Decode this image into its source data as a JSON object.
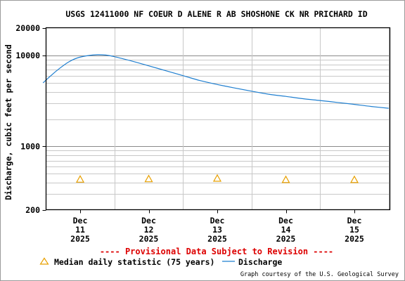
{
  "chart_data": {
    "type": "line",
    "title": "USGS 12411000 NF COEUR D ALENE R AB SHOSHONE CK NR PRICHARD ID",
    "ylabel": "Discharge, cubic feet per second",
    "xlabel": "",
    "yscale": "log",
    "ylim": [
      200,
      20000
    ],
    "y_ticks": [
      {
        "value": 200,
        "label": "200"
      },
      {
        "value": 1000,
        "label": "1000"
      },
      {
        "value": 10000,
        "label": "10000"
      },
      {
        "value": 20000,
        "label": "20000"
      }
    ],
    "x_ticks": [
      {
        "line1": "Dec",
        "line2": "11",
        "line3": "2025"
      },
      {
        "line1": "Dec",
        "line2": "12",
        "line3": "2025"
      },
      {
        "line1": "Dec",
        "line2": "13",
        "line3": "2025"
      },
      {
        "line1": "Dec",
        "line2": "14",
        "line3": "2025"
      },
      {
        "line1": "Dec",
        "line2": "15",
        "line3": "2025"
      }
    ],
    "grid": true,
    "series": [
      {
        "name": "Discharge",
        "color": "#1f7fd0",
        "points": [
          {
            "x": "2025-12-10 11:00",
            "y": 5000
          },
          {
            "x": "2025-12-10 14:00",
            "y": 6100
          },
          {
            "x": "2025-12-10 17:00",
            "y": 7300
          },
          {
            "x": "2025-12-10 20:00",
            "y": 8500
          },
          {
            "x": "2025-12-10 23:00",
            "y": 9400
          },
          {
            "x": "2025-12-11 03:00",
            "y": 10000
          },
          {
            "x": "2025-12-11 06:00",
            "y": 10200
          },
          {
            "x": "2025-12-11 09:00",
            "y": 10100
          },
          {
            "x": "2025-12-11 12:00",
            "y": 9700
          },
          {
            "x": "2025-12-11 18:00",
            "y": 8700
          },
          {
            "x": "2025-12-12 00:00",
            "y": 7700
          },
          {
            "x": "2025-12-12 06:00",
            "y": 6800
          },
          {
            "x": "2025-12-12 12:00",
            "y": 6000
          },
          {
            "x": "2025-12-12 18:00",
            "y": 5300
          },
          {
            "x": "2025-12-13 00:00",
            "y": 4800
          },
          {
            "x": "2025-12-13 06:00",
            "y": 4400
          },
          {
            "x": "2025-12-13 12:00",
            "y": 4050
          },
          {
            "x": "2025-12-13 18:00",
            "y": 3750
          },
          {
            "x": "2025-12-14 00:00",
            "y": 3550
          },
          {
            "x": "2025-12-14 06:00",
            "y": 3350
          },
          {
            "x": "2025-12-14 12:00",
            "y": 3200
          },
          {
            "x": "2025-12-14 18:00",
            "y": 3050
          },
          {
            "x": "2025-12-15 00:00",
            "y": 2900
          },
          {
            "x": "2025-12-15 06:00",
            "y": 2750
          },
          {
            "x": "2025-12-15 12:00",
            "y": 2630
          }
        ]
      },
      {
        "name": "Median daily statistic (75 years)",
        "color": "#e8a000",
        "marker": "triangle",
        "points": [
          {
            "x": "2025-12-11 00:00",
            "y": 435
          },
          {
            "x": "2025-12-12 00:00",
            "y": 440
          },
          {
            "x": "2025-12-13 00:00",
            "y": 445
          },
          {
            "x": "2025-12-14 00:00",
            "y": 430
          },
          {
            "x": "2025-12-15 00:00",
            "y": 430
          }
        ]
      }
    ],
    "annotation": "---- Provisional Data Subject to Revision ----",
    "annotation_color": "#dd0000",
    "legend_placement": "bottom",
    "credit": "Graph courtesy of the U.S. Geological Survey"
  }
}
